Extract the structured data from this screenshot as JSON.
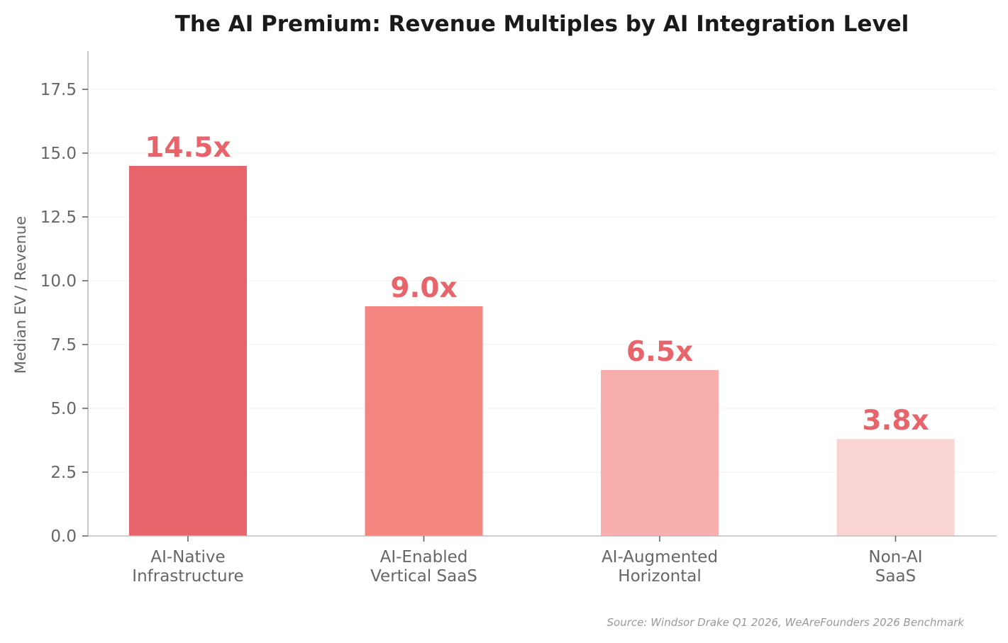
{
  "chart_data": {
    "type": "bar",
    "title": "The AI Premium: Revenue Multiples by AI Integration Level",
    "xlabel": "",
    "ylabel": "Median EV / Revenue",
    "ylim": [
      0,
      19
    ],
    "yticks": [
      0,
      2.5,
      5,
      7.5,
      10,
      12.5,
      15,
      17.5
    ],
    "ytick_labels": [
      "0.0",
      "2.5",
      "5.0",
      "7.5",
      "10.0",
      "12.5",
      "15.0",
      "17.5"
    ],
    "grid": "horizontal",
    "categories": [
      [
        "AI-Native",
        "Infrastructure"
      ],
      [
        "AI-Enabled",
        "Vertical SaaS"
      ],
      [
        "AI-Augmented",
        "Horizontal"
      ],
      [
        "Non-AI",
        "SaaS"
      ]
    ],
    "values": [
      14.5,
      9.0,
      6.5,
      3.8
    ],
    "data_labels": [
      "14.5x",
      "9.0x",
      "6.5x",
      "3.8x"
    ],
    "bar_colors": [
      "#e8646b",
      "#f4857f",
      "#f8aeac",
      "#fad4d2"
    ],
    "data_label_color": "#e8646b",
    "source": "Source: Windsor Drake Q1 2026, WeAreFounders 2026 Benchmark"
  }
}
